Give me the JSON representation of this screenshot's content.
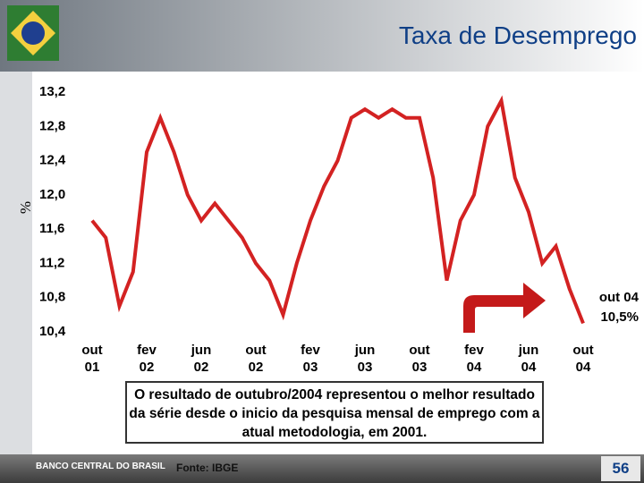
{
  "chart_data": {
    "type": "line",
    "title": "Taxa de Desemprego",
    "y_label": "%",
    "categories": [
      "out 01",
      null,
      null,
      null,
      "fev 02",
      null,
      null,
      null,
      "jun 02",
      null,
      null,
      null,
      "out 02",
      null,
      null,
      null,
      "fev 03",
      null,
      null,
      null,
      "jun 03",
      null,
      null,
      null,
      "out 03",
      null,
      null,
      null,
      "fev 04",
      null,
      null,
      null,
      "jun 04",
      null,
      null,
      null,
      "out 04"
    ],
    "values": [
      11.7,
      11.5,
      10.7,
      11.1,
      12.5,
      12.9,
      12.5,
      12.0,
      11.7,
      11.9,
      11.7,
      11.5,
      11.2,
      11.0,
      10.6,
      11.2,
      11.7,
      12.1,
      12.4,
      12.9,
      13.0,
      12.9,
      13.0,
      12.9,
      12.9,
      12.2,
      11.0,
      11.7,
      12.0,
      12.8,
      13.1,
      12.2,
      11.8,
      11.2,
      11.4,
      10.9,
      10.5
    ],
    "color": "#d32222",
    "ylim": [
      10.4,
      13.2
    ],
    "yticks": [
      {
        "value": 10.4,
        "label": "10,4"
      },
      {
        "value": 10.8,
        "label": "10,8"
      },
      {
        "value": 11.2,
        "label": "11,2"
      },
      {
        "value": 11.6,
        "label": "11,6"
      },
      {
        "value": 12.0,
        "label": "12,0"
      },
      {
        "value": 12.4,
        "label": "12,4"
      },
      {
        "value": 12.8,
        "label": "12,8"
      },
      {
        "value": 13.2,
        "label": "13,2"
      }
    ],
    "annotation": "out 04 10,5%",
    "note": "O resultado de outubro/2004 representou o melhor resultado da série desde o inicio da pesquisa mensal de emprego com a atual metodologia, em 2001.",
    "source": "Fonte: IBGE"
  },
  "footer": {
    "brand": "BANCO CENTRAL DO BRASIL",
    "page": "56"
  }
}
